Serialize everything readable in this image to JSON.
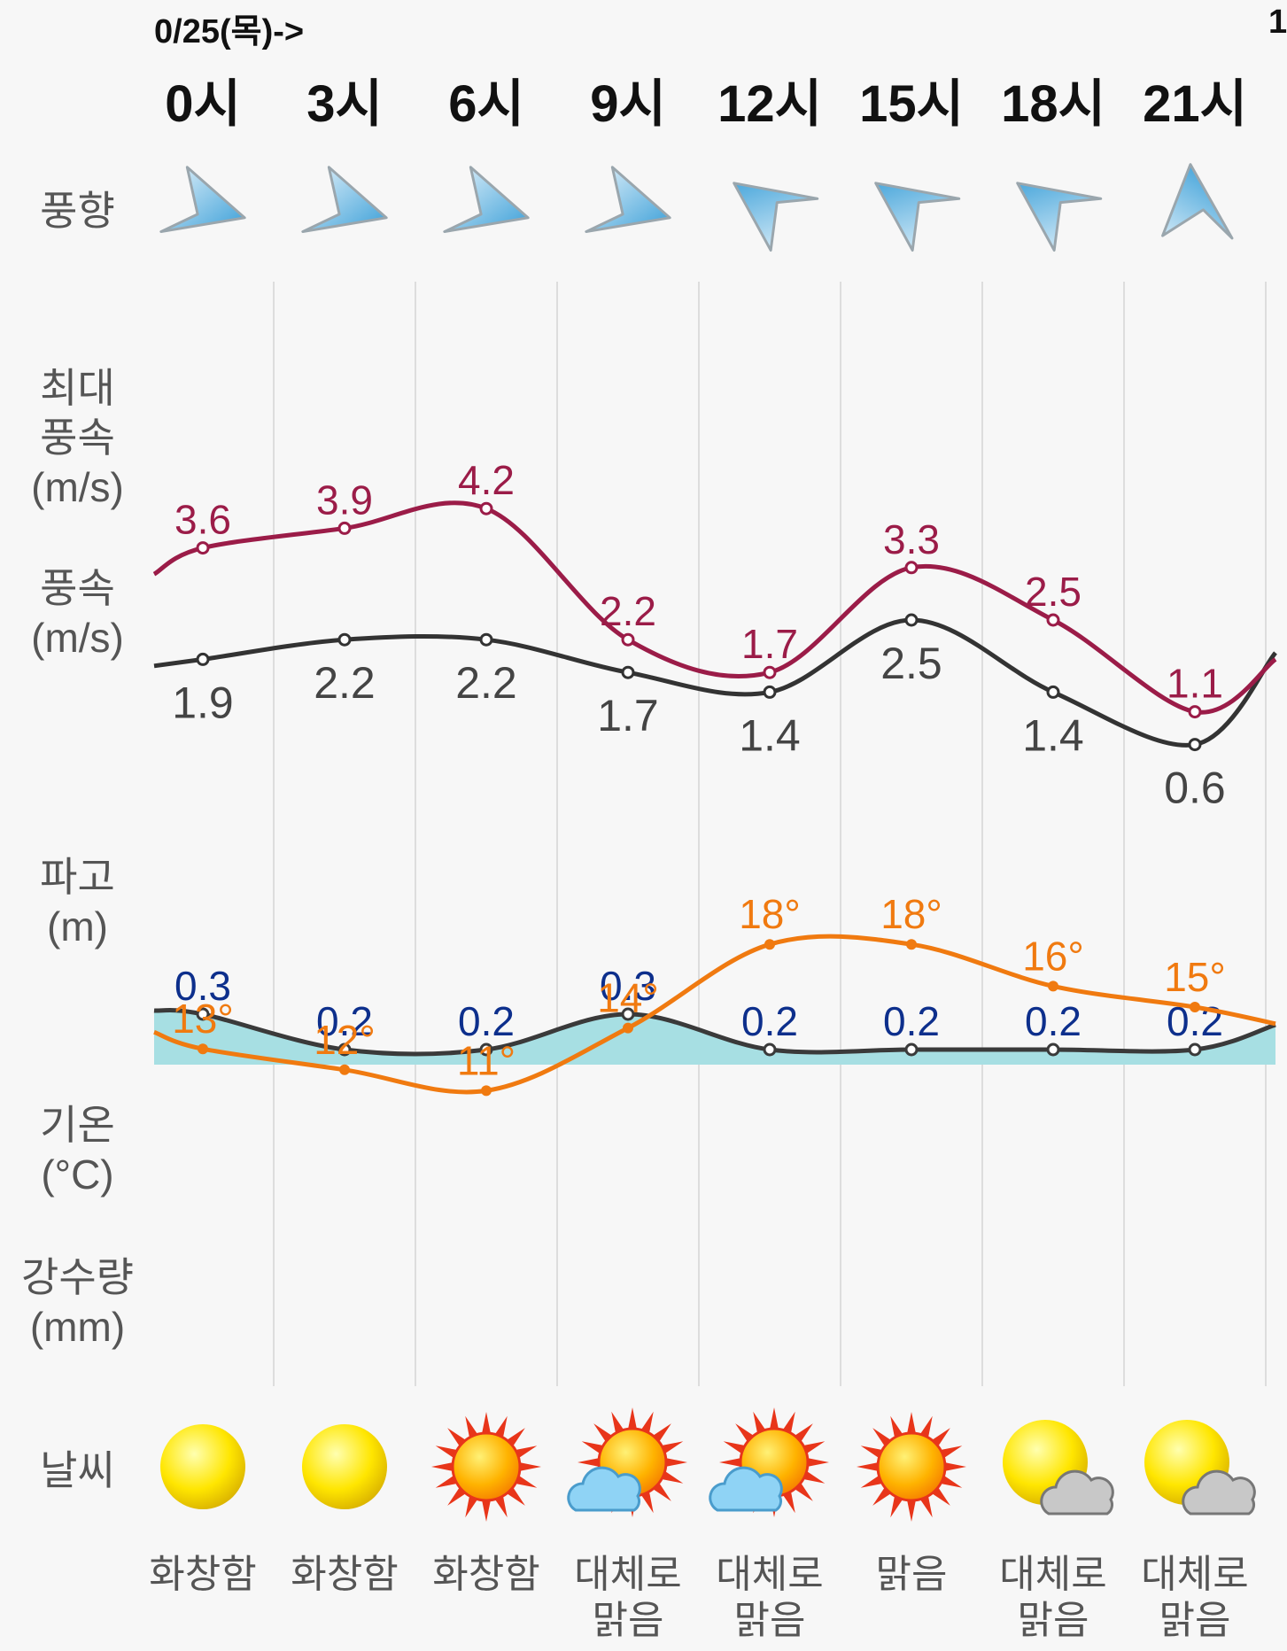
{
  "header": {
    "date": "0/25(목)->",
    "next_date_fragment": "1"
  },
  "hours": [
    "0시",
    "3시",
    "6시",
    "9시",
    "12시",
    "15시",
    "18시",
    "21시"
  ],
  "labels": {
    "wind_dir": "풍향",
    "max_wind_1": "최대",
    "max_wind_2": "풍속",
    "max_wind_3": "(m/s)",
    "wind_1": "풍속",
    "wind_2": "(m/s)",
    "wave_1": "파고",
    "wave_2": "(m)",
    "temp_1": "기온",
    "temp_2": "(°C)",
    "rain_1": "강수량",
    "rain_2": "(mm)",
    "weather": "날씨"
  },
  "wind_direction_icons": [
    "arrow-east-icon",
    "arrow-east-icon",
    "arrow-east-icon",
    "arrow-east-icon",
    "arrow-northwest-icon",
    "arrow-northwest-icon",
    "arrow-northwest-icon",
    "arrow-north-icon"
  ],
  "chart_data": [
    {
      "type": "line",
      "name": "max_wind_speed",
      "x": [
        "0시",
        "3시",
        "6시",
        "9시",
        "12시",
        "15시",
        "18시",
        "21시"
      ],
      "values": [
        3.6,
        3.9,
        4.2,
        2.2,
        1.7,
        3.3,
        2.5,
        1.1
      ],
      "labels": [
        "3.6",
        "3.9",
        "4.2",
        "2.2",
        "1.7",
        "3.3",
        "2.5",
        "1.1"
      ],
      "color": "#9b1c48"
    },
    {
      "type": "line",
      "name": "wind_speed",
      "x": [
        "0시",
        "3시",
        "6시",
        "9시",
        "12시",
        "15시",
        "18시",
        "21시"
      ],
      "values": [
        1.9,
        2.2,
        2.2,
        1.7,
        1.4,
        2.5,
        1.4,
        0.6
      ],
      "labels": [
        "1.9",
        "2.2",
        "2.2",
        "1.7",
        "1.4",
        "2.5",
        "1.4",
        "0.6"
      ],
      "color": "#333333"
    },
    {
      "type": "area",
      "name": "wave_height",
      "x": [
        "0시",
        "3시",
        "6시",
        "9시",
        "12시",
        "15시",
        "18시",
        "21시"
      ],
      "values": [
        0.3,
        0.2,
        0.2,
        0.3,
        0.2,
        0.2,
        0.2,
        0.2
      ],
      "labels": [
        "0.3",
        "0.2",
        "0.2",
        "0.3",
        "0.2",
        "0.2",
        "0.2",
        "0.2"
      ],
      "color": "#0d2f8c",
      "fill": "#a7dfe3"
    },
    {
      "type": "line",
      "name": "temperature",
      "x": [
        "0시",
        "3시",
        "6시",
        "9시",
        "12시",
        "15시",
        "18시",
        "21시"
      ],
      "values": [
        13,
        12,
        11,
        14,
        18,
        18,
        16,
        15
      ],
      "labels": [
        "13°",
        "12°",
        "11°",
        "14°",
        "18°",
        "18°",
        "16°",
        "15°"
      ],
      "color": "#f07a10"
    }
  ],
  "weather": [
    {
      "icon": "sun-icon",
      "text": [
        "화창함"
      ]
    },
    {
      "icon": "sun-icon",
      "text": [
        "화창함"
      ]
    },
    {
      "icon": "bright-sun-icon",
      "text": [
        "화창함"
      ]
    },
    {
      "icon": "sun-cloud-icon",
      "text": [
        "대체로",
        "맑음"
      ]
    },
    {
      "icon": "sun-cloud-icon",
      "text": [
        "대체로",
        "맑음"
      ]
    },
    {
      "icon": "bright-sun-icon",
      "text": [
        "맑음"
      ]
    },
    {
      "icon": "sun-gray-cloud-icon",
      "text": [
        "대체로",
        "맑음"
      ]
    },
    {
      "icon": "sun-gray-cloud-icon",
      "text": [
        "대체로",
        "맑음"
      ]
    }
  ]
}
